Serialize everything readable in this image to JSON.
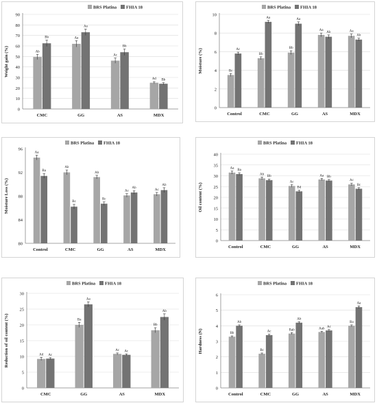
{
  "colors": {
    "brs": "#a6a6a6",
    "fhia": "#737373",
    "axis": "#888888",
    "grid": "#d9d9d9",
    "text": "#222222"
  },
  "chart_data": [
    {
      "type": "bar",
      "categories": [
        "CMC",
        "GG",
        "AS",
        "MDX"
      ],
      "series": [
        {
          "name": "BRS Platina",
          "values": [
            49.5,
            62.0,
            46.0,
            25.0
          ],
          "errors": [
            2.5,
            3.0,
            2.5,
            1.0
          ],
          "labels": [
            "Ab",
            "Aa",
            "Ac",
            "Ad"
          ]
        },
        {
          "name": "FHIA 18",
          "values": [
            62.5,
            73.0,
            54.0,
            24.0
          ],
          "errors": [
            3.0,
            3.0,
            3.0,
            1.0
          ],
          "labels": [
            "Bb",
            "Aa",
            "Bb",
            "Bb"
          ]
        }
      ],
      "xlabel": "",
      "ylabel": "Weight gain (%)",
      "ylim": [
        0,
        90
      ],
      "yticks": [
        0,
        10,
        20,
        30,
        40,
        50,
        60,
        70,
        80,
        90
      ],
      "grid": true,
      "legend": "top-right"
    },
    {
      "type": "bar",
      "categories": [
        "Control",
        "CMC",
        "GG",
        "AS",
        "MDX"
      ],
      "series": [
        {
          "name": "BRS Platina",
          "values": [
            3.5,
            5.3,
            5.9,
            7.8,
            7.7
          ],
          "errors": [
            0.15,
            0.15,
            0.2,
            0.2,
            0.2
          ],
          "labels": [
            "Bc",
            "Bb",
            "Bb",
            "Aa",
            "Aa"
          ]
        },
        {
          "name": "FHIA 18",
          "values": [
            5.8,
            9.2,
            9.0,
            7.6,
            7.3
          ],
          "errors": [
            0.15,
            0.15,
            0.2,
            0.2,
            0.15
          ],
          "labels": [
            "Ac",
            "Aa",
            "Aa",
            "Ab",
            "Ab"
          ]
        }
      ],
      "xlabel": "",
      "ylabel": "Moisture (%)",
      "ylim": [
        0,
        10
      ],
      "yticks": [
        0,
        2,
        4,
        6,
        8,
        10
      ],
      "grid": true,
      "legend": "top-right"
    },
    {
      "type": "bar",
      "categories": [
        "Control",
        "CMC",
        "GG",
        "AS",
        "MDX"
      ],
      "series": [
        {
          "name": "BRS Platina",
          "values": [
            94.5,
            92.0,
            91.2,
            88.1,
            88.3
          ],
          "errors": [
            0.4,
            0.4,
            0.3,
            0.3,
            0.3
          ],
          "labels": [
            "Aa",
            "Ab",
            "Ab",
            "Ac",
            "Ac"
          ]
        },
        {
          "name": "FHIA 18",
          "values": [
            91.4,
            86.2,
            86.7,
            88.6,
            89.0
          ],
          "errors": [
            0.4,
            0.4,
            0.3,
            0.3,
            0.4
          ],
          "labels": [
            "Ba",
            "Bc",
            "Bc",
            "Ab",
            "Ab"
          ]
        }
      ],
      "xlabel": "",
      "ylabel": "Moisture Loss (%)",
      "ylim": [
        80,
        96
      ],
      "yticks": [
        80,
        84,
        88,
        92,
        96
      ],
      "grid": false,
      "legend": "top-right"
    },
    {
      "type": "bar",
      "categories": [
        "Control",
        "CMC",
        "GG",
        "AS",
        "MDX"
      ],
      "series": [
        {
          "name": "BRS Platina",
          "values": [
            31.5,
            28.8,
            25.3,
            28.3,
            26.0
          ],
          "errors": [
            0.7,
            0.6,
            0.6,
            0.5,
            0.6
          ],
          "labels": [
            "Aa",
            "Ab",
            "Ac",
            "Aa",
            "Ac"
          ]
        },
        {
          "name": "FHIA 18",
          "values": [
            30.8,
            28.0,
            22.8,
            27.8,
            24.0
          ],
          "errors": [
            0.6,
            0.5,
            0.5,
            0.5,
            0.5
          ],
          "labels": [
            "Ba",
            "Bb",
            "Bd",
            "Bb",
            "Bc"
          ]
        }
      ],
      "xlabel": "",
      "ylabel": "Oil content (%)",
      "ylim": [
        0,
        40
      ],
      "yticks": [
        0,
        5,
        10,
        15,
        20,
        25,
        30,
        35,
        40
      ],
      "grid": true,
      "legend": "top-right"
    },
    {
      "type": "bar",
      "categories": [
        "CMC",
        "GG",
        "AS",
        "MDX"
      ],
      "series": [
        {
          "name": "BRS Platina",
          "values": [
            9.2,
            20.0,
            10.8,
            18.3
          ],
          "errors": [
            0.5,
            0.8,
            0.3,
            0.8
          ],
          "labels": [
            "Ad",
            "Ba",
            "Ac",
            "Bb"
          ]
        },
        {
          "name": "FHIA 18",
          "values": [
            9.3,
            26.5,
            10.5,
            22.5
          ],
          "errors": [
            0.3,
            0.8,
            0.3,
            1.0
          ],
          "labels": [
            "Ac",
            "Aa",
            "Ac",
            "Ab"
          ]
        }
      ],
      "xlabel": "",
      "ylabel": "Reduction of oil content (%)",
      "ylim": [
        0,
        30
      ],
      "yticks": [
        0,
        5,
        10,
        15,
        20,
        25,
        30
      ],
      "grid": true,
      "legend": "top-right"
    },
    {
      "type": "bar",
      "categories": [
        "Control",
        "CMC",
        "GG",
        "AS",
        "MDX"
      ],
      "series": [
        {
          "name": "BRS Platina",
          "values": [
            3.3,
            2.2,
            3.5,
            3.6,
            4.0
          ],
          "errors": [
            0.05,
            0.05,
            0.06,
            0.05,
            0.06
          ],
          "labels": [
            "Bb",
            "Bc",
            "Bab",
            "Aab",
            "Ba"
          ]
        },
        {
          "name": "FHIA 18",
          "values": [
            4.0,
            3.4,
            4.2,
            3.7,
            5.2
          ],
          "errors": [
            0.06,
            0.06,
            0.06,
            0.06,
            0.08
          ],
          "labels": [
            "Ab",
            "Ac",
            "Ab",
            "Ac",
            "Aa"
          ]
        }
      ],
      "xlabel": "",
      "ylabel": "Hardness (N)",
      "ylim": [
        0,
        6
      ],
      "yticks": [
        0,
        1,
        2,
        3,
        4,
        5,
        6
      ],
      "grid": true,
      "legend": "top-right"
    }
  ]
}
